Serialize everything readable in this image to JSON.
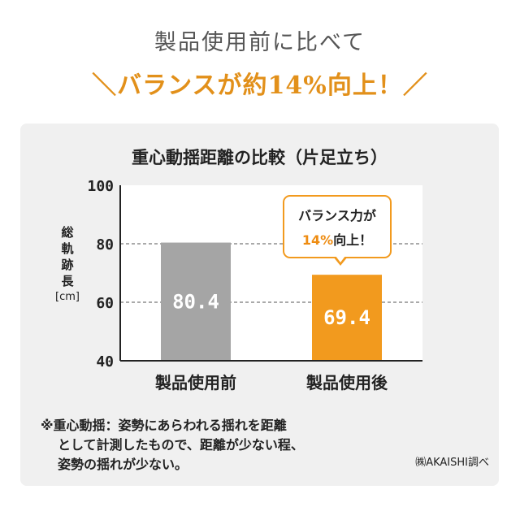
{
  "header": {
    "line1": "製品使用前に比べて",
    "line2_prefix": "＼バランスが約",
    "line2_number": "14%",
    "line2_suffix": "向上！／"
  },
  "callout": {
    "line1": "バランス力が",
    "line2_highlight": "14%",
    "line2_rest": "向上！"
  },
  "footnote": {
    "line1": "※重心動揺：姿勢にあらわれる揺れを距離",
    "line2": "として計測したもので、距離が少ない程、",
    "line3": "姿勢の揺れが少ない。"
  },
  "source": "㈱AKAISHI調べ",
  "colors": {
    "accent": "#f29a1e",
    "before_bar": "#a5a5a5",
    "panel": "#f0f0f0"
  },
  "chart_data": {
    "type": "bar",
    "title": "重心動揺距離の比較（片足立ち）",
    "ylabel_lines": [
      "総",
      "軌",
      "跡",
      "長"
    ],
    "ylabel_unit": "[cm]",
    "xlabel": "",
    "categories": [
      "製品使用前",
      "製品使用後"
    ],
    "values": [
      80.4,
      69.4
    ],
    "value_labels": [
      "80.4",
      "69.4"
    ],
    "ylim": [
      40,
      100
    ],
    "yticks": [
      40,
      60,
      80,
      100
    ],
    "gridlines": [
      60,
      80
    ],
    "grid": true,
    "bar_colors": [
      "#a5a5a5",
      "#f29a1e"
    ]
  }
}
